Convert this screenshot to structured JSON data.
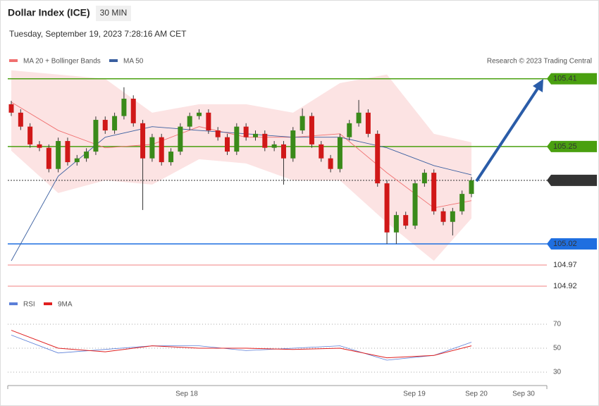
{
  "chart_data": {
    "type": "candlestick",
    "title": "Dollar Index (ICE)",
    "timeframe": "30 MIN",
    "subtitle": "Tuesday, September 19, 2023 7:28:16 AM CET",
    "credit": "Research © 2023 Trading Central",
    "ylim": [
      104.905,
      105.438
    ],
    "candles": [
      [
        105.35,
        105.358,
        105.322,
        105.33
      ],
      [
        105.33,
        105.338,
        105.289,
        105.297
      ],
      [
        105.297,
        105.305,
        105.247,
        105.255
      ],
      [
        105.255,
        105.263,
        105.239,
        105.247
      ],
      [
        105.247,
        105.255,
        105.189,
        105.197
      ],
      [
        105.197,
        105.271,
        105.189,
        105.263
      ],
      [
        105.263,
        105.271,
        105.205,
        105.213
      ],
      [
        105.213,
        105.23,
        105.205,
        105.222
      ],
      [
        105.222,
        105.246,
        105.214,
        105.238
      ],
      [
        105.238,
        105.321,
        105.23,
        105.313
      ],
      [
        105.313,
        105.321,
        105.28,
        105.288
      ],
      [
        105.288,
        105.33,
        105.28,
        105.322
      ],
      [
        105.322,
        105.39,
        105.314,
        105.363
      ],
      [
        105.363,
        105.371,
        105.297,
        105.305
      ],
      [
        105.305,
        105.313,
        105.1,
        105.222
      ],
      [
        105.222,
        105.28,
        105.214,
        105.272
      ],
      [
        105.272,
        105.28,
        105.205,
        105.213
      ],
      [
        105.213,
        105.246,
        105.205,
        105.238
      ],
      [
        105.238,
        105.305,
        105.23,
        105.297
      ],
      [
        105.297,
        105.33,
        105.289,
        105.322
      ],
      [
        105.322,
        105.338,
        105.314,
        105.33
      ],
      [
        105.33,
        105.338,
        105.28,
        105.288
      ],
      [
        105.288,
        105.296,
        105.264,
        105.272
      ],
      [
        105.272,
        105.28,
        105.23,
        105.238
      ],
      [
        105.238,
        105.305,
        105.23,
        105.297
      ],
      [
        105.297,
        105.305,
        105.264,
        105.272
      ],
      [
        105.272,
        105.288,
        105.264,
        105.28
      ],
      [
        105.28,
        105.288,
        105.239,
        105.247
      ],
      [
        105.247,
        105.263,
        105.239,
        105.255
      ],
      [
        105.255,
        105.263,
        105.16,
        105.222
      ],
      [
        105.222,
        105.296,
        105.214,
        105.288
      ],
      [
        105.288,
        105.34,
        105.28,
        105.322
      ],
      [
        105.322,
        105.33,
        105.247,
        105.255
      ],
      [
        105.255,
        105.263,
        105.214,
        105.222
      ],
      [
        105.222,
        105.23,
        105.189,
        105.197
      ],
      [
        105.197,
        105.28,
        105.189,
        105.272
      ],
      [
        105.272,
        105.313,
        105.264,
        105.305
      ],
      [
        105.305,
        105.36,
        105.297,
        105.33
      ],
      [
        105.33,
        105.338,
        105.272,
        105.28
      ],
      [
        105.28,
        105.288,
        105.155,
        105.163
      ],
      [
        105.163,
        105.171,
        105.02,
        105.047
      ],
      [
        105.047,
        105.096,
        105.02,
        105.088
      ],
      [
        105.088,
        105.096,
        105.055,
        105.063
      ],
      [
        105.063,
        105.171,
        105.055,
        105.163
      ],
      [
        105.163,
        105.196,
        105.155,
        105.188
      ],
      [
        105.188,
        105.196,
        105.089,
        105.097
      ],
      [
        105.097,
        105.105,
        105.064,
        105.072
      ],
      [
        105.072,
        105.105,
        105.04,
        105.097
      ],
      [
        105.097,
        105.146,
        105.089,
        105.138
      ],
      [
        105.138,
        105.178,
        105.13,
        105.17
      ]
    ],
    "up_color": "#3a8a1a",
    "down_color": "#d01818",
    "x": [
      0,
      5,
      10,
      15,
      20,
      25,
      30,
      35,
      40,
      45,
      49
    ],
    "bollinger": {
      "name": "MA 20 + Bollinger Bands",
      "color": "#f08080",
      "upper": [
        105.43,
        105.42,
        105.41,
        105.33,
        105.35,
        105.35,
        105.33,
        105.4,
        105.42,
        105.28,
        105.26
      ],
      "lower": [
        105.24,
        105.14,
        105.17,
        105.16,
        105.22,
        105.21,
        105.17,
        105.17,
        105.07,
        104.98,
        105.08
      ]
    },
    "series": [
      {
        "name": "MA 20 + Bollinger Bands",
        "color": "#f07070",
        "values": [
          105.355,
          105.288,
          105.247,
          105.255,
          105.297,
          105.272,
          105.272,
          105.28,
          105.188,
          105.105,
          105.122
        ]
      },
      {
        "name": "MA 50",
        "color": "#3a5fa0",
        "values": [
          104.98,
          105.18,
          105.272,
          105.297,
          105.288,
          105.28,
          105.272,
          105.272,
          105.247,
          105.205,
          105.183
        ]
      }
    ],
    "levels": [
      {
        "value": 105.41,
        "color": "#4aa010",
        "text_color": "#ffffff"
      },
      {
        "value": 105.25,
        "color": "#4aa010",
        "text_color": "#ffffff"
      },
      {
        "value": 105.17,
        "color": "#333333",
        "text_color": "#ffffff"
      },
      {
        "value": 105.02,
        "color": "#1f6fe0",
        "text_color": "#ffffff"
      },
      {
        "value": 104.97,
        "color": "#f08080",
        "text_color": "#d01818"
      },
      {
        "value": 104.92,
        "color": "#f08080",
        "text_color": "#d01818"
      }
    ],
    "rsi": {
      "ylim": [
        18.8,
        81.8
      ],
      "yticks": [
        70,
        50,
        30
      ],
      "series": [
        {
          "name": "RSI",
          "color": "#5b7fd8",
          "values": [
            61,
            46,
            49,
            52,
            52,
            48,
            50,
            52,
            40,
            44,
            55
          ]
        },
        {
          "name": "9MA",
          "color": "#e02020",
          "values": [
            65,
            50,
            47,
            52,
            50,
            50,
            49,
            50,
            42,
            44,
            52
          ]
        }
      ]
    },
    "x_labels": [
      "Sep 18",
      "Sep 19",
      "Sep 20",
      "Sep 30"
    ]
  }
}
